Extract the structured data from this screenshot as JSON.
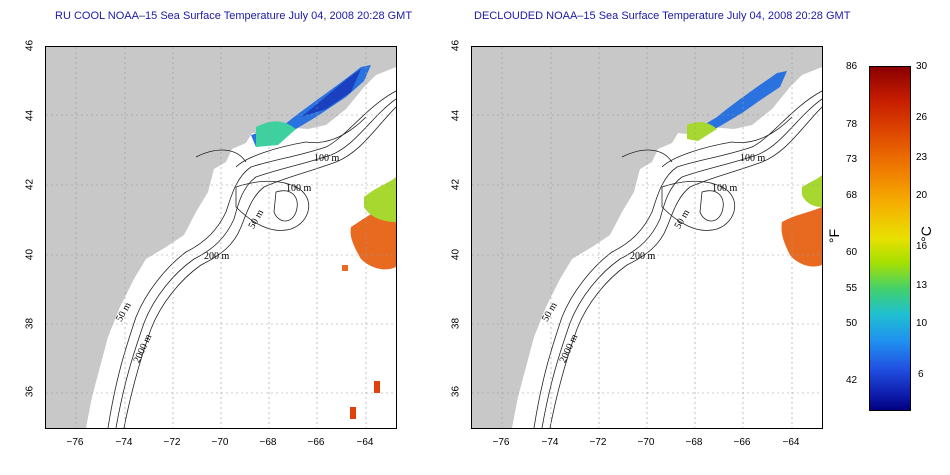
{
  "left_panel": {
    "title": "RU COOL NOAA–15 Sea Surface Temperature July 04, 2008 20:28 GMT"
  },
  "right_panel": {
    "title": "DECLOUDED NOAA–15 Sea Surface Temperature July 04, 2008 20:28 GMT"
  },
  "axes": {
    "lat_ticks": [
      "46",
      "44",
      "42",
      "40",
      "38",
      "36"
    ],
    "lon_ticks": [
      "−76",
      "−74",
      "−72",
      "−70",
      "−68",
      "−66",
      "−64"
    ]
  },
  "contour_labels": {
    "c100a": "100 m",
    "c100b": "100 m",
    "c50a": "50 m",
    "c200": "200 m",
    "c50b": "50 m",
    "c2000": "2000 m"
  },
  "colorbar": {
    "fahrenheit_label": "°F",
    "celsius_label": "°C",
    "fahrenheit_ticks": [
      "86",
      "78",
      "73",
      "68",
      "60",
      "55",
      "50",
      "42"
    ],
    "celsius_ticks": [
      "30",
      "26",
      "23",
      "20",
      "16",
      "13",
      "10",
      "6"
    ]
  },
  "colors": {
    "land": "#c8c8c8",
    "ocean": "#ffffff",
    "title": "#1a1aa6",
    "grid": "#9a9a9a"
  }
}
